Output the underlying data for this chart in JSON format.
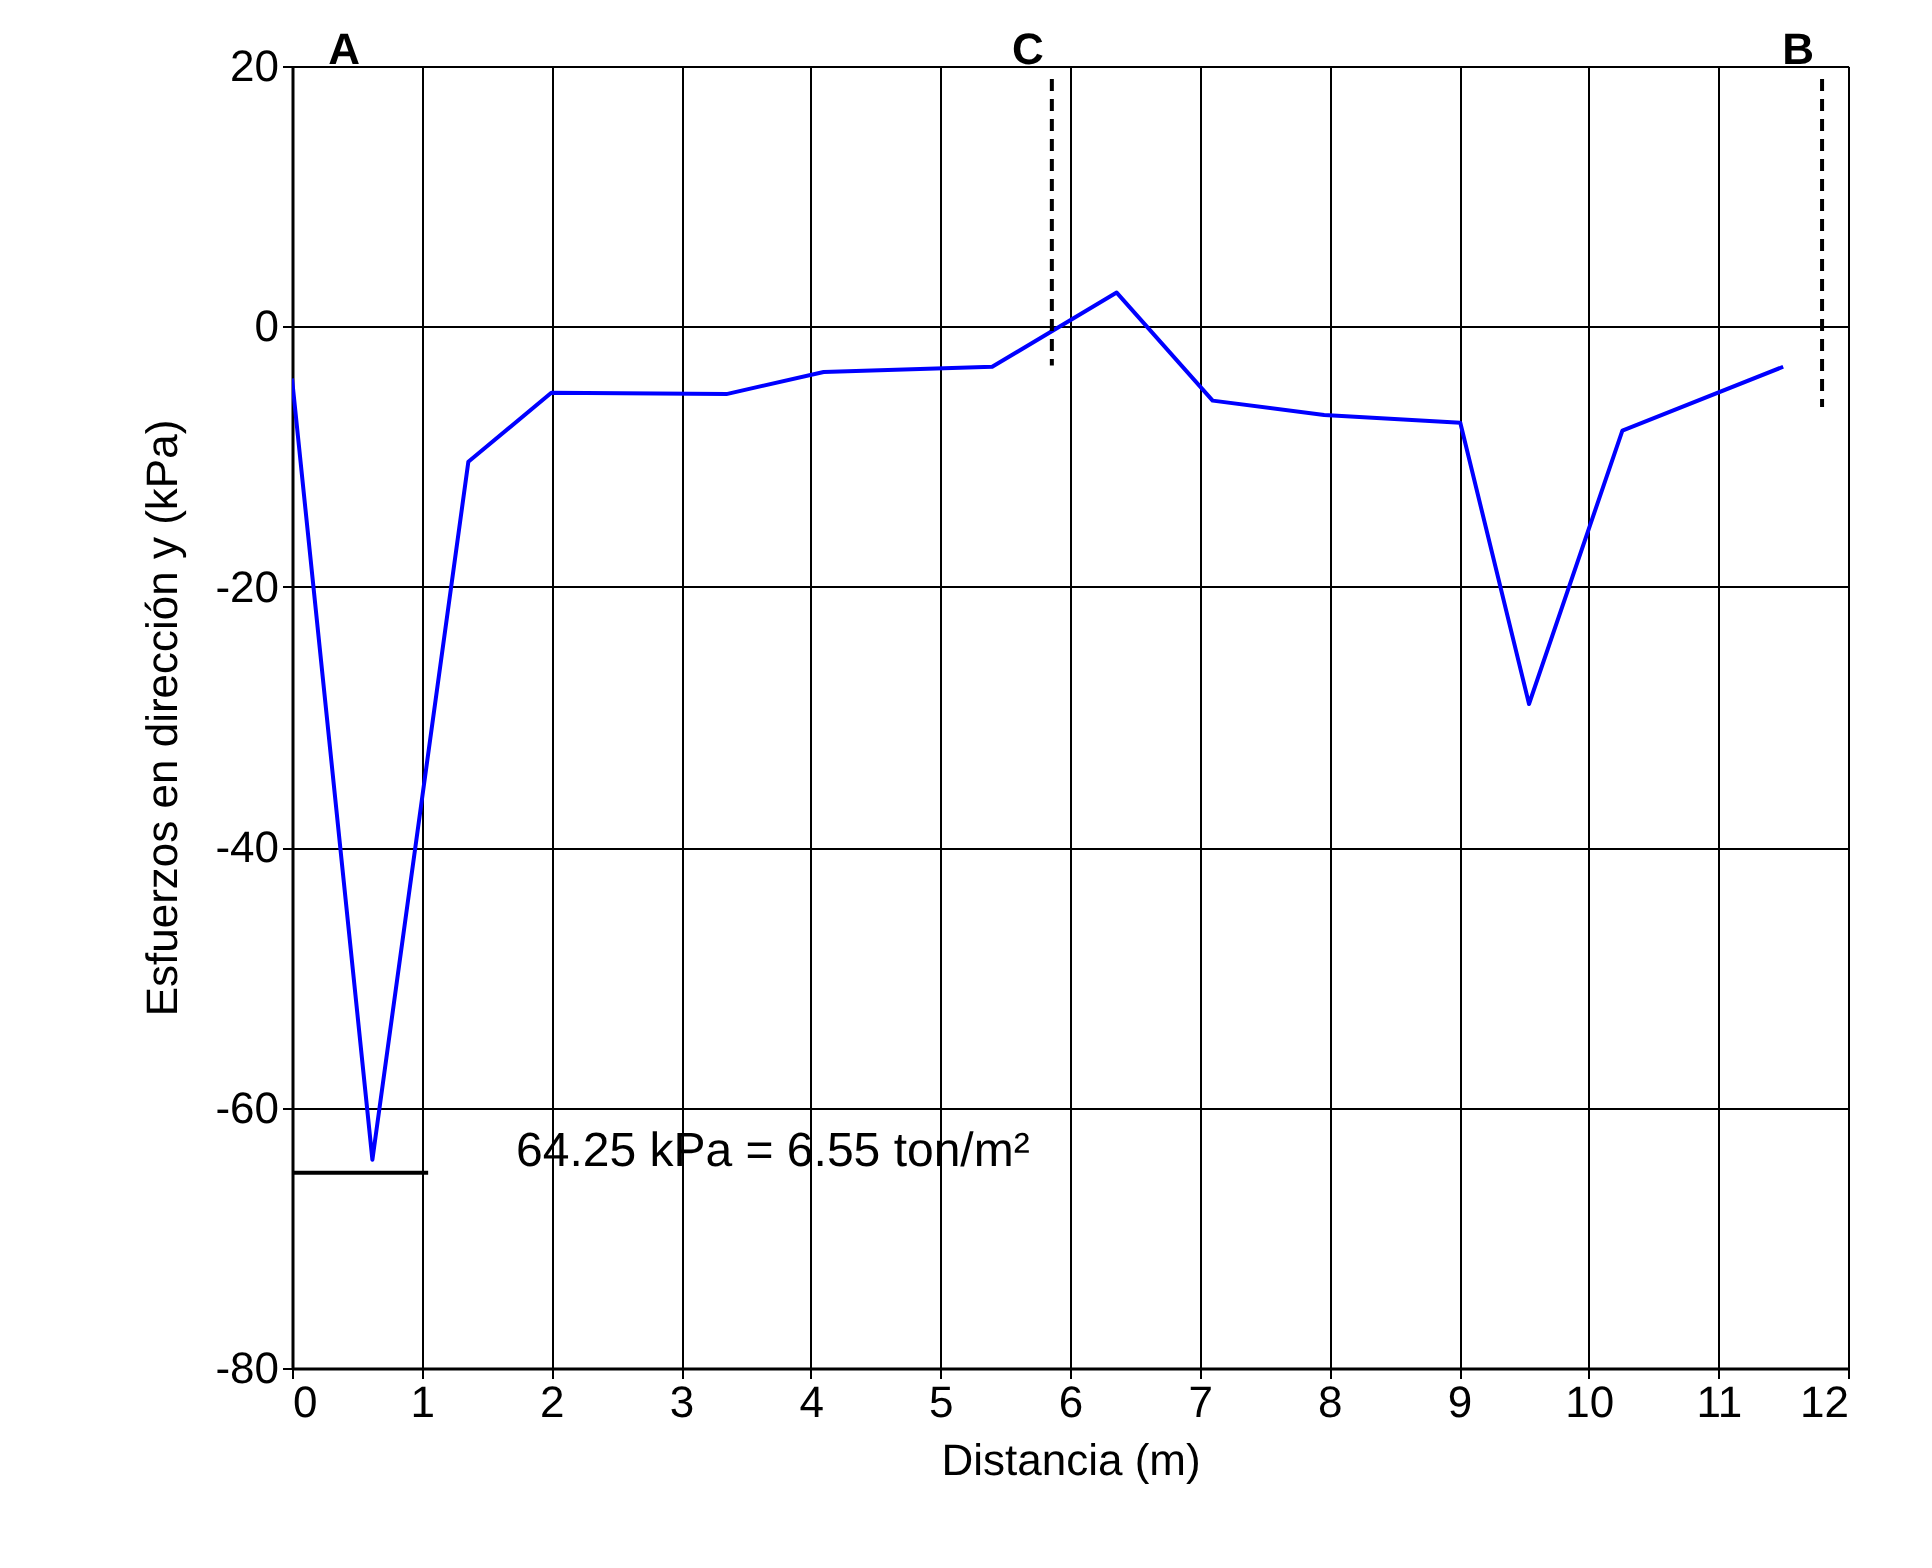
{
  "chart_data": {
    "type": "line",
    "xlabel": "Distancia (m)",
    "ylabel": "Esfuerzos en dirección y (kPa)",
    "xlim": [
      0,
      12
    ],
    "xticks": [
      0,
      1,
      2,
      3,
      4,
      5,
      6,
      7,
      8,
      9,
      10,
      11,
      12
    ],
    "ylim": [
      -80,
      20
    ],
    "yticks": [
      -80,
      -60,
      -40,
      -20,
      0,
      20
    ],
    "grid": true,
    "marker": "none",
    "series": [
      {
        "color": "#0000ff",
        "line_style": "solid",
        "x": [
          0,
          0.62,
          1.36,
          2.0,
          3.35,
          4.1,
          5.4,
          6.36,
          7.1,
          7.96,
          9.01,
          9.54,
          10.26,
          11.5
        ],
        "values": [
          -4,
          -64,
          -10.4,
          -5.1,
          -5.2,
          -3.5,
          -3.1,
          2.6,
          -5.7,
          -6.8,
          -7.4,
          -29,
          -8,
          -3.1
        ]
      },
      {
        "name": "C",
        "color": "#000000",
        "line_style": "dashed",
        "x": [
          5.86,
          5.86
        ],
        "values": [
          19,
          -3
        ]
      },
      {
        "name": "B",
        "color": "#000000",
        "line_style": "dashed",
        "x": [
          11.8,
          11.8
        ],
        "values": [
          19,
          -6.2
        ]
      },
      {
        "color": "#000000",
        "line_style": "solid",
        "x": [
          0,
          1.05
        ],
        "values": [
          -65,
          -65
        ]
      }
    ],
    "annotations": [
      "A",
      "64.25 kPa = 6.55 ton/m²"
    ]
  }
}
